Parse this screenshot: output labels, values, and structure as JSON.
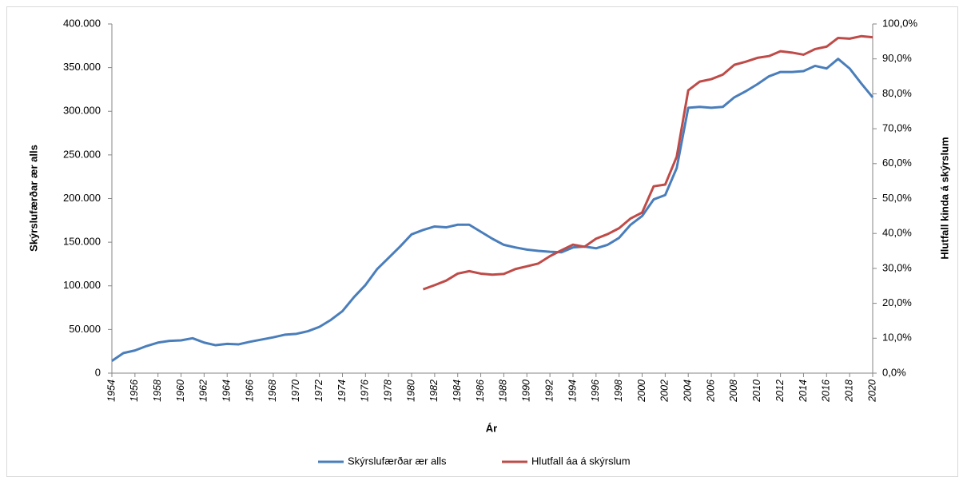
{
  "chart_data": {
    "type": "line",
    "x_label": "Ár",
    "y_label": "Skýrslufærðar ær alls",
    "y2_label": "Hlutfall kinda á skýrslum",
    "x": [
      1954,
      1955,
      1956,
      1957,
      1958,
      1959,
      1960,
      1961,
      1962,
      1963,
      1964,
      1965,
      1966,
      1967,
      1968,
      1969,
      1970,
      1971,
      1972,
      1973,
      1974,
      1975,
      1976,
      1977,
      1978,
      1979,
      1980,
      1981,
      1982,
      1983,
      1984,
      1985,
      1986,
      1987,
      1988,
      1989,
      1990,
      1991,
      1992,
      1993,
      1994,
      1995,
      1996,
      1997,
      1998,
      1999,
      2000,
      2001,
      2002,
      2003,
      2004,
      2005,
      2006,
      2007,
      2008,
      2009,
      2010,
      2011,
      2012,
      2013,
      2014,
      2015,
      2016,
      2017,
      2018,
      2019,
      2020
    ],
    "xlim": [
      1954,
      2020
    ],
    "xticks": [
      1954,
      1956,
      1958,
      1960,
      1962,
      1964,
      1966,
      1968,
      1970,
      1972,
      1974,
      1976,
      1978,
      1980,
      1982,
      1984,
      1986,
      1988,
      1990,
      1992,
      1994,
      1996,
      1998,
      2000,
      2002,
      2004,
      2006,
      2008,
      2010,
      2012,
      2014,
      2016,
      2018,
      2020
    ],
    "ylim": [
      0,
      400000
    ],
    "yticks": [
      0,
      {
        "value": 50000,
        "label": "50.000"
      },
      {
        "value": 100000,
        "label": "100.000"
      },
      {
        "value": 150000,
        "label": "150.000"
      },
      {
        "value": 200000,
        "label": "200.000"
      },
      {
        "value": 250000,
        "label": "250.000"
      },
      {
        "value": 300000,
        "label": "300.000"
      },
      {
        "value": 350000,
        "label": "350.000"
      },
      {
        "value": 400000,
        "label": "400.000"
      }
    ],
    "y2lim": [
      0,
      100
    ],
    "y2ticks": [
      {
        "value": 0,
        "label": "0,0%"
      },
      {
        "value": 10,
        "label": "10,0%"
      },
      {
        "value": 20,
        "label": "20,0%"
      },
      {
        "value": 30,
        "label": "30,0%"
      },
      {
        "value": 40,
        "label": "40,0%"
      },
      {
        "value": 50,
        "label": "50,0%"
      },
      {
        "value": 60,
        "label": "60,0%"
      },
      {
        "value": 70,
        "label": "70,0%"
      },
      {
        "value": 80,
        "label": "80,0%"
      },
      {
        "value": 90,
        "label": "90,0%"
      },
      {
        "value": 100,
        "label": "100,0%"
      }
    ],
    "legend": "bottom",
    "series": [
      {
        "name": "Skýrslufærðar ær alls",
        "color": "#4a7ebb",
        "values": [
          14000,
          23000,
          26000,
          31000,
          35000,
          37000,
          37500,
          40000,
          35000,
          32000,
          33500,
          33000,
          36000,
          38500,
          41000,
          44000,
          45000,
          48000,
          53000,
          61000,
          71000,
          87000,
          101000,
          119000,
          132000,
          145000,
          159000,
          164000,
          168000,
          167000,
          170000,
          170000,
          162000,
          154000,
          147000,
          144000,
          141500,
          140000,
          139000,
          138500,
          144000,
          145000,
          143000,
          147000,
          155000,
          170000,
          180000,
          199000,
          204000,
          235000,
          304000,
          305000,
          304000,
          305000,
          316000,
          323000,
          331000,
          340000,
          345000,
          345000,
          346000,
          352000,
          349000,
          360000,
          349000,
          332000,
          316000
        ]
      },
      {
        "name": "Hlutfall áa á skýrslum",
        "color": "#be4b48",
        "axis": "y2",
        "values": [
          null,
          null,
          null,
          null,
          null,
          null,
          null,
          null,
          null,
          null,
          null,
          null,
          null,
          null,
          null,
          null,
          null,
          null,
          null,
          null,
          null,
          null,
          null,
          null,
          null,
          null,
          null,
          24.0,
          25.2,
          26.5,
          28.5,
          29.2,
          28.5,
          28.2,
          28.4,
          29.8,
          30.6,
          31.4,
          33.5,
          35.2,
          36.8,
          36.2,
          38.5,
          39.8,
          41.5,
          44.3,
          46.0,
          53.5,
          54.0,
          62.0,
          81.0,
          83.5,
          84.2,
          85.5,
          88.3,
          89.2,
          90.3,
          90.8,
          92.2,
          91.8,
          91.2,
          92.8,
          93.5,
          96.0,
          95.8,
          96.5,
          96.2
        ]
      }
    ]
  }
}
